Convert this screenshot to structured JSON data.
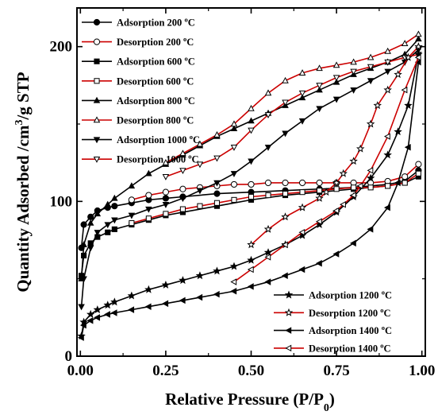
{
  "chart_data": {
    "type": "line",
    "xlabel": "Relative Pressure (P/P",
    "xlabel_sub": "0",
    "xlabel_end": ")",
    "ylabel": "Quantity Adsorbed /cm",
    "ylabel_sup": "3",
    "ylabel_end": "/g STP",
    "xlim": [
      -0.01,
      1.01
    ],
    "ylim": [
      0,
      225
    ],
    "xticks": [
      0.0,
      0.25,
      0.5,
      0.75,
      1.0
    ],
    "xtick_labels": [
      "0.00",
      "0.25",
      "0.50",
      "0.75",
      "1.00"
    ],
    "yticks": [
      0,
      100,
      200
    ],
    "ytick_labels": [
      "0",
      "100",
      "200"
    ],
    "legend_top": "top-left",
    "legend_bottom": "bottom-right",
    "colors": {
      "adsorption": "#000000",
      "desorption": "#cc0000",
      "marker_edge": "#000000"
    },
    "series": [
      {
        "name": "Adsorption 200 °C",
        "legend_group": "top",
        "kind": "adsorption",
        "marker": "circle",
        "filled": true,
        "x": [
          0.003,
          0.01,
          0.03,
          0.05,
          0.08,
          0.1,
          0.15,
          0.2,
          0.25,
          0.3,
          0.4,
          0.5,
          0.6,
          0.7,
          0.8,
          0.9,
          0.95,
          0.99
        ],
        "y": [
          70,
          85,
          90,
          94,
          96,
          97,
          99,
          101,
          102,
          103,
          105,
          106,
          107,
          108,
          109,
          111,
          113,
          120
        ]
      },
      {
        "name": "Desorption 200 °C",
        "legend_group": "top",
        "kind": "desorption",
        "marker": "circle",
        "filled": false,
        "x": [
          0.99,
          0.95,
          0.9,
          0.85,
          0.8,
          0.75,
          0.7,
          0.65,
          0.6,
          0.55,
          0.5,
          0.45,
          0.4,
          0.35,
          0.3,
          0.25,
          0.2,
          0.15
        ],
        "y": [
          124,
          116,
          113,
          112,
          112,
          112,
          112,
          112,
          112,
          112,
          111,
          111,
          110,
          109,
          108,
          106,
          104,
          101
        ]
      },
      {
        "name": "Adsorption 600 °C",
        "legend_group": "top",
        "kind": "adsorption",
        "marker": "square",
        "filled": true,
        "x": [
          0.003,
          0.01,
          0.03,
          0.05,
          0.08,
          0.1,
          0.15,
          0.2,
          0.25,
          0.3,
          0.4,
          0.5,
          0.6,
          0.7,
          0.8,
          0.9,
          0.95,
          0.99
        ],
        "y": [
          52,
          65,
          73,
          77,
          80,
          82,
          85,
          88,
          91,
          93,
          97,
          101,
          104,
          106,
          108,
          110,
          112,
          116
        ]
      },
      {
        "name": "Desorption 600 °C",
        "legend_group": "top",
        "kind": "desorption",
        "marker": "square",
        "filled": false,
        "x": [
          0.99,
          0.95,
          0.9,
          0.85,
          0.8,
          0.75,
          0.7,
          0.65,
          0.6,
          0.55,
          0.5,
          0.45,
          0.4,
          0.35,
          0.3,
          0.25,
          0.2,
          0.15
        ],
        "y": [
          118,
          112,
          110,
          109,
          109,
          108,
          107,
          106,
          105,
          104,
          103,
          101,
          99,
          97,
          95,
          92,
          89,
          86
        ]
      },
      {
        "name": "Adsorption 800 °C",
        "legend_group": "top",
        "kind": "adsorption",
        "marker": "triangle-up",
        "filled": true,
        "x": [
          0.003,
          0.01,
          0.03,
          0.05,
          0.08,
          0.1,
          0.15,
          0.2,
          0.25,
          0.3,
          0.35,
          0.4,
          0.45,
          0.5,
          0.55,
          0.6,
          0.65,
          0.7,
          0.75,
          0.8,
          0.85,
          0.9,
          0.95,
          0.99
        ],
        "y": [
          50,
          72,
          86,
          92,
          98,
          102,
          110,
          118,
          124,
          130,
          136,
          142,
          147,
          152,
          157,
          162,
          167,
          172,
          177,
          182,
          186,
          190,
          195,
          205
        ]
      },
      {
        "name": "Desorption 800 °C",
        "legend_group": "top",
        "kind": "desorption",
        "marker": "triangle-up",
        "filled": false,
        "x": [
          0.99,
          0.95,
          0.9,
          0.85,
          0.8,
          0.75,
          0.7,
          0.65,
          0.6,
          0.55,
          0.5,
          0.45,
          0.4,
          0.35,
          0.3,
          0.25
        ],
        "y": [
          208,
          202,
          197,
          193,
          190,
          188,
          186,
          183,
          178,
          170,
          160,
          150,
          143,
          137,
          131,
          125
        ]
      },
      {
        "name": "Adsorption 1000 °C",
        "legend_group": "top",
        "kind": "adsorption",
        "marker": "triangle-down",
        "filled": true,
        "x": [
          0.003,
          0.01,
          0.03,
          0.05,
          0.08,
          0.1,
          0.15,
          0.2,
          0.25,
          0.3,
          0.35,
          0.4,
          0.45,
          0.5,
          0.55,
          0.6,
          0.65,
          0.7,
          0.75,
          0.8,
          0.85,
          0.9,
          0.95,
          0.99
        ],
        "y": [
          32,
          50,
          70,
          80,
          85,
          88,
          91,
          95,
          98,
          102,
          107,
          112,
          118,
          126,
          135,
          144,
          152,
          160,
          166,
          172,
          178,
          184,
          190,
          198
        ]
      },
      {
        "name": "Desorption 1000 °C",
        "legend_group": "top",
        "kind": "desorption",
        "marker": "triangle-down",
        "filled": false,
        "x": [
          0.99,
          0.95,
          0.9,
          0.85,
          0.8,
          0.75,
          0.7,
          0.65,
          0.6,
          0.55,
          0.5,
          0.45,
          0.4,
          0.35,
          0.3,
          0.25
        ],
        "y": [
          195,
          193,
          190,
          187,
          184,
          180,
          175,
          170,
          164,
          156,
          146,
          135,
          128,
          124,
          120,
          116
        ]
      },
      {
        "name": "Adsorption 1200 °C",
        "legend_group": "bottom",
        "kind": "adsorption",
        "marker": "star",
        "filled": true,
        "x": [
          0.003,
          0.01,
          0.03,
          0.05,
          0.08,
          0.1,
          0.15,
          0.2,
          0.25,
          0.3,
          0.35,
          0.4,
          0.45,
          0.5,
          0.55,
          0.6,
          0.65,
          0.7,
          0.75,
          0.8,
          0.85,
          0.9,
          0.93,
          0.96,
          0.99
        ],
        "y": [
          13,
          22,
          27,
          30,
          33,
          35,
          39,
          43,
          46,
          49,
          52,
          55,
          58,
          62,
          67,
          72,
          78,
          85,
          93,
          103,
          115,
          130,
          145,
          162,
          195
        ]
      },
      {
        "name": "Desorption 1200 °C",
        "legend_group": "bottom",
        "kind": "desorption",
        "marker": "star",
        "filled": false,
        "x": [
          0.99,
          0.96,
          0.93,
          0.9,
          0.87,
          0.85,
          0.82,
          0.8,
          0.77,
          0.75,
          0.72,
          0.7,
          0.65,
          0.6,
          0.55,
          0.5
        ],
        "y": [
          200,
          193,
          182,
          172,
          162,
          150,
          134,
          126,
          118,
          112,
          106,
          102,
          96,
          90,
          82,
          72
        ]
      },
      {
        "name": "Adsorption 1400 °C",
        "legend_group": "bottom",
        "kind": "adsorption",
        "marker": "triangle-left",
        "filled": true,
        "x": [
          0.003,
          0.01,
          0.03,
          0.05,
          0.08,
          0.1,
          0.15,
          0.2,
          0.25,
          0.3,
          0.35,
          0.4,
          0.45,
          0.5,
          0.55,
          0.6,
          0.65,
          0.7,
          0.75,
          0.8,
          0.85,
          0.9,
          0.93,
          0.96,
          0.99
        ],
        "y": [
          12,
          20,
          23,
          25,
          27,
          28,
          30,
          32,
          34,
          36,
          38,
          40,
          42,
          45,
          48,
          52,
          56,
          60,
          66,
          73,
          82,
          96,
          112,
          135,
          190
        ]
      },
      {
        "name": "Desorption 1400 °C",
        "legend_group": "bottom",
        "kind": "desorption",
        "marker": "triangle-left",
        "filled": false,
        "x": [
          0.99,
          0.95,
          0.9,
          0.85,
          0.82,
          0.8,
          0.77,
          0.75,
          0.7,
          0.65,
          0.6,
          0.55,
          0.5,
          0.45
        ],
        "y": [
          193,
          172,
          142,
          120,
          110,
          104,
          98,
          94,
          87,
          80,
          72,
          64,
          56,
          48
        ]
      }
    ]
  }
}
